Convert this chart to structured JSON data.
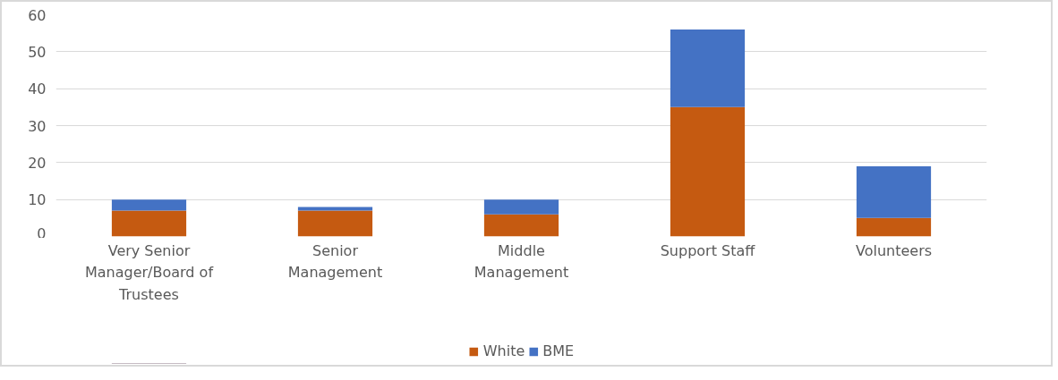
{
  "chart_data": {
    "type": "bar",
    "stacked": true,
    "categories": [
      "Very Senior Manager/Board of Trustees",
      "Senior Management",
      "Middle Management",
      "Support Staff",
      "Volunteers"
    ],
    "series": [
      {
        "name": "White",
        "color": "#c55a11",
        "values": [
          7,
          7,
          6,
          35,
          5
        ]
      },
      {
        "name": "BME",
        "color": "#4472c4",
        "values": [
          3,
          1,
          4,
          21,
          14
        ]
      }
    ],
    "ylim": [
      0,
      60
    ],
    "yticks": [
      0,
      10,
      20,
      30,
      40,
      50,
      60
    ],
    "grid": "y",
    "legend": "bottom"
  }
}
